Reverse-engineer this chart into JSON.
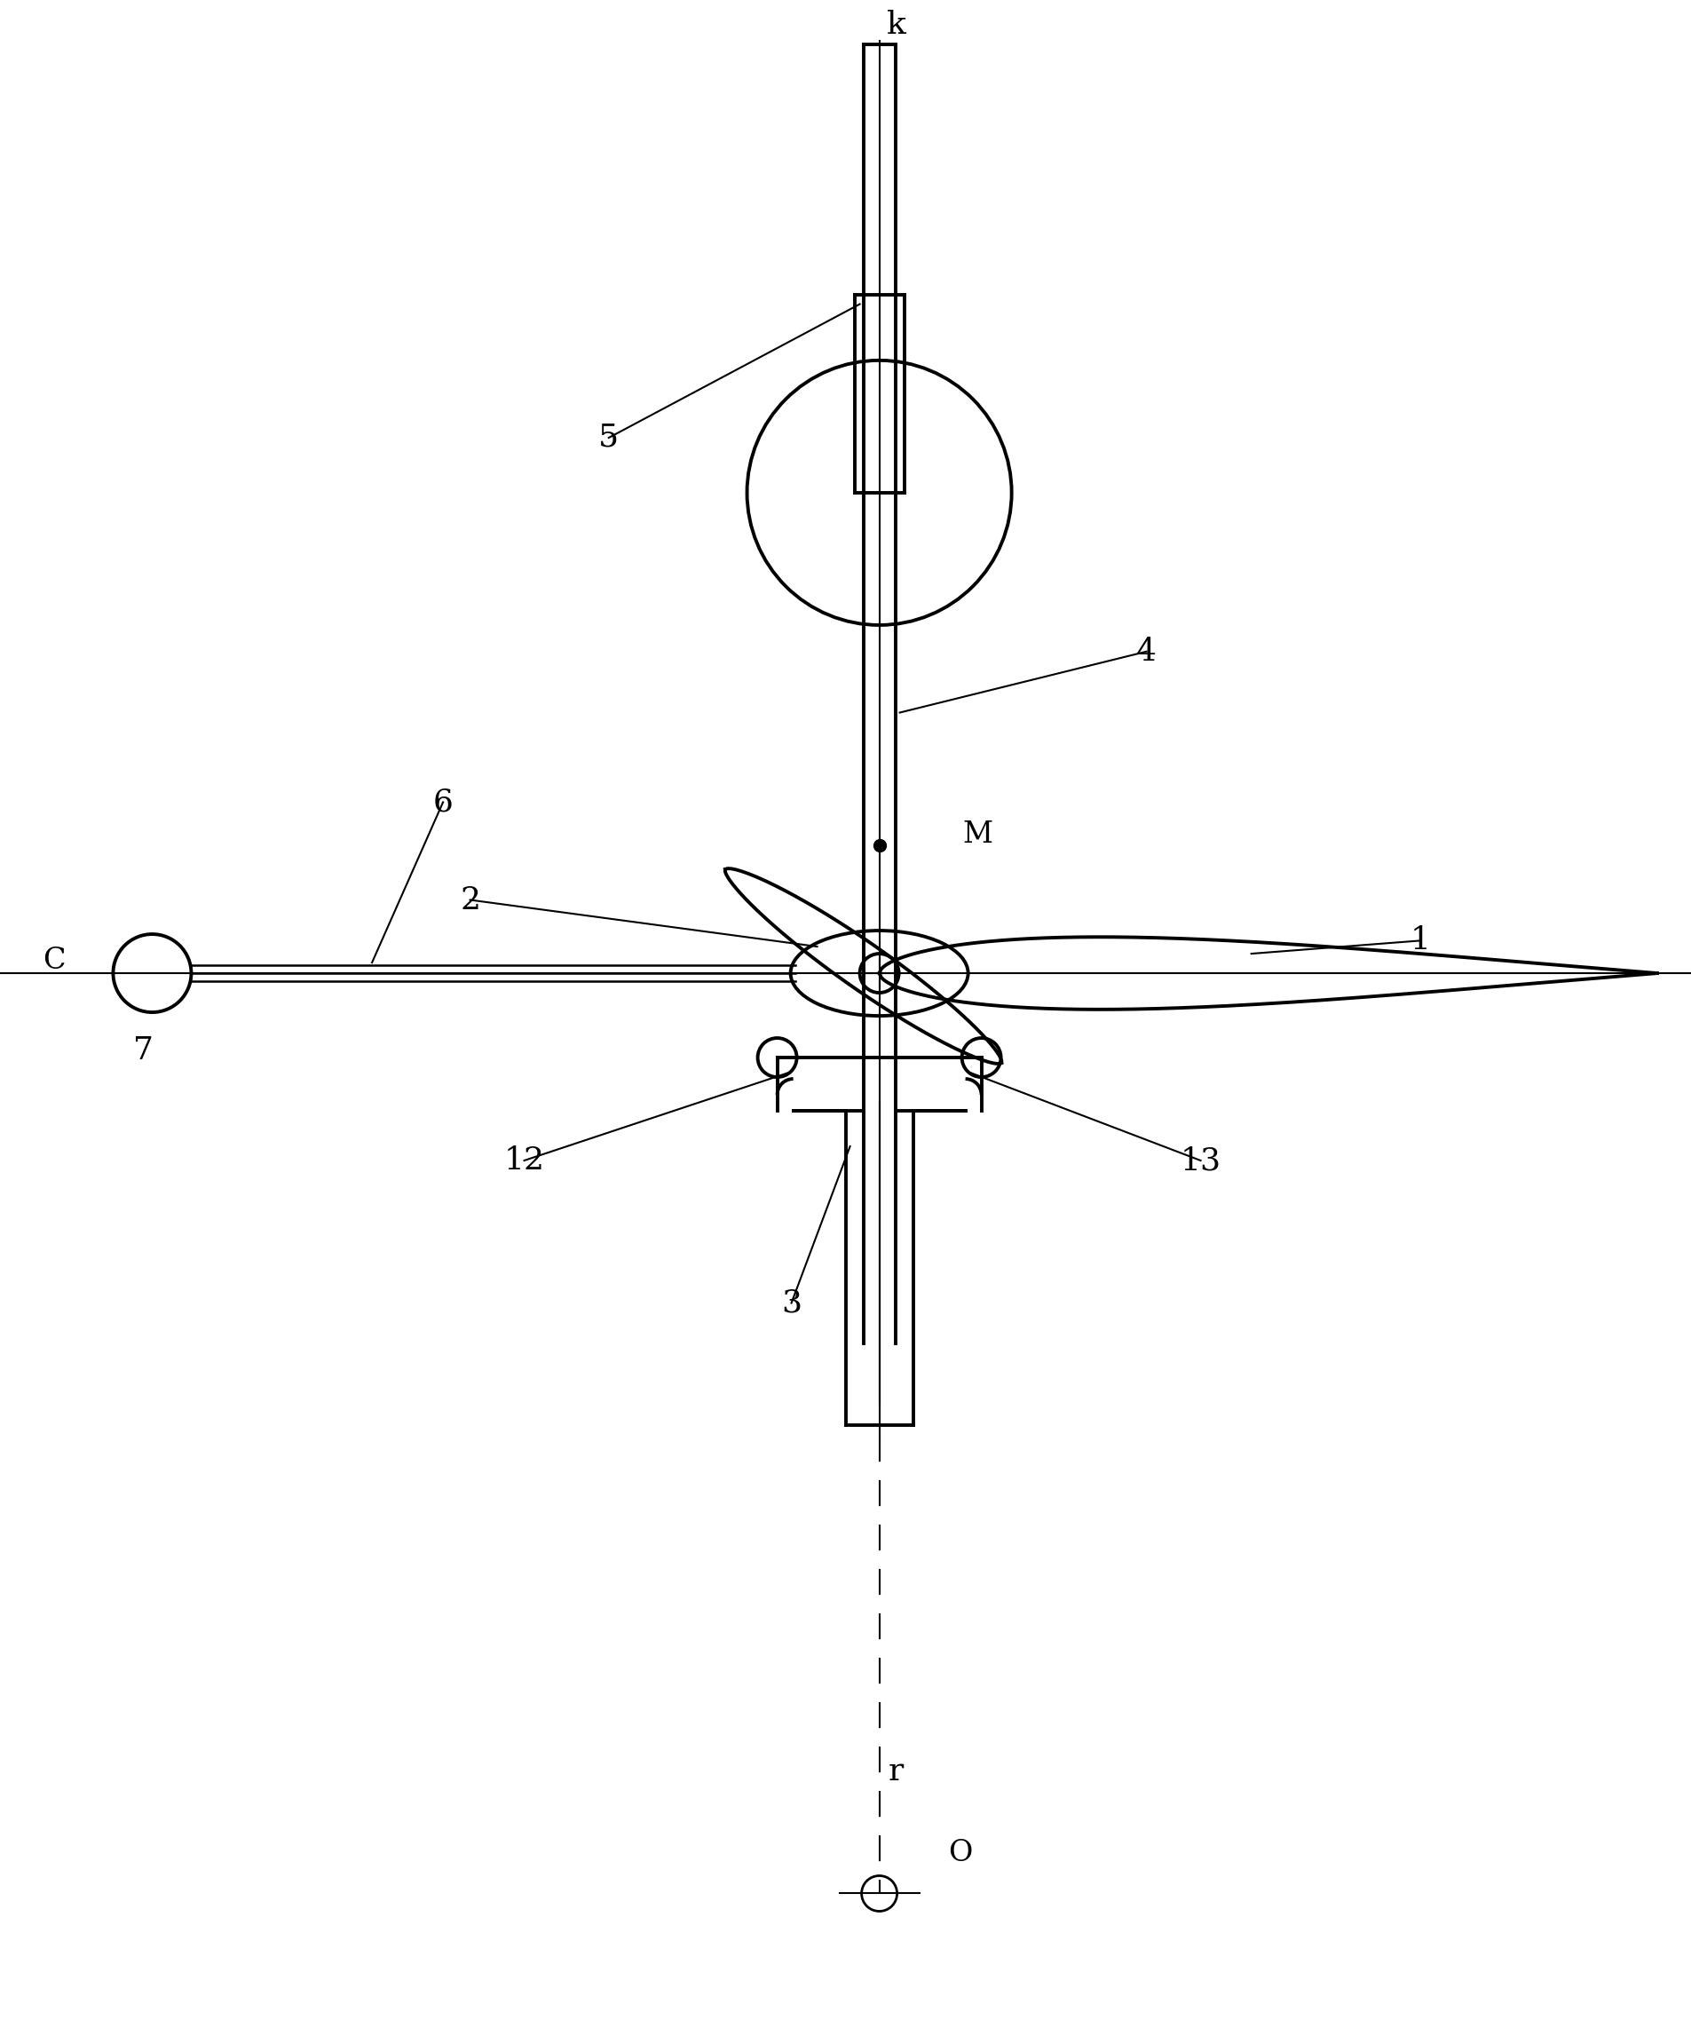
{
  "bg_color": "#ffffff",
  "lc": "#000000",
  "labels": {
    "k": {
      "fx": 0.53,
      "fy": 0.012,
      "text": "k",
      "fs": 26
    },
    "r": {
      "fx": 0.53,
      "fy": 0.87,
      "text": "r",
      "fs": 26
    },
    "O": {
      "fx": 0.568,
      "fy": 0.91,
      "text": "O",
      "fs": 24
    },
    "C": {
      "fx": 0.032,
      "fy": 0.472,
      "text": "C",
      "fs": 24
    },
    "M": {
      "fx": 0.578,
      "fy": 0.41,
      "text": "M",
      "fs": 24
    },
    "1": {
      "fx": 0.84,
      "fy": 0.462,
      "text": "1",
      "fs": 26
    },
    "2": {
      "fx": 0.278,
      "fy": 0.442,
      "text": "2",
      "fs": 26
    },
    "3": {
      "fx": 0.468,
      "fy": 0.64,
      "text": "3",
      "fs": 26
    },
    "4": {
      "fx": 0.678,
      "fy": 0.32,
      "text": "4",
      "fs": 26
    },
    "5": {
      "fx": 0.36,
      "fy": 0.215,
      "text": "5",
      "fs": 26
    },
    "6": {
      "fx": 0.262,
      "fy": 0.394,
      "text": "6",
      "fs": 26
    },
    "7": {
      "fx": 0.085,
      "fy": 0.516,
      "text": "7",
      "fs": 26
    },
    "12": {
      "fx": 0.31,
      "fy": 0.57,
      "text": "12",
      "fs": 26
    },
    "13": {
      "fx": 0.71,
      "fy": 0.57,
      "text": "13",
      "fs": 26
    }
  }
}
